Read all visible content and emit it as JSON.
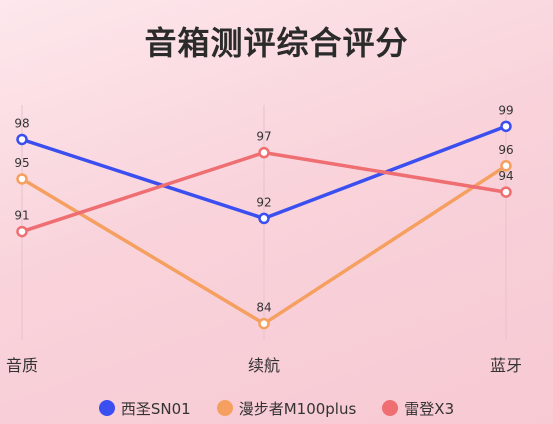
{
  "chart_data": {
    "type": "line",
    "title": "音箱测评综合评分",
    "categories": [
      "音质",
      "续航",
      "蓝牙"
    ],
    "series": [
      {
        "name": "西圣SN01",
        "values": [
          98,
          92,
          99
        ],
        "color": "#3b4ef0"
      },
      {
        "name": "漫步者M100plus",
        "values": [
          95,
          84,
          96
        ],
        "color": "#f5a060"
      },
      {
        "name": "雷登X3",
        "values": [
          91,
          97,
          94
        ],
        "color": "#ee6e72"
      }
    ],
    "ylim": [
      82,
      101
    ],
    "grid": "vertical",
    "legend": "bottom"
  }
}
